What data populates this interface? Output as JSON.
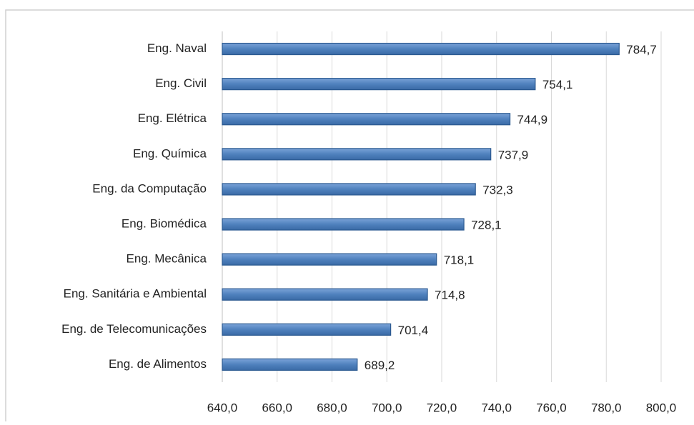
{
  "chart_data": {
    "type": "bar",
    "orientation": "horizontal",
    "categories": [
      "Eng. Naval",
      "Eng. Civil",
      "Eng. Elétrica",
      "Eng. Química",
      "Eng. da Computação",
      "Eng. Biomédica",
      "Eng. Mecânica",
      "Eng. Sanitária e Ambiental",
      "Eng. de Telecomunicações",
      "Eng. de Alimentos"
    ],
    "values": [
      784.7,
      754.1,
      744.9,
      737.9,
      732.3,
      728.1,
      718.1,
      714.8,
      701.4,
      689.2
    ],
    "value_labels": [
      "784,7",
      "754,1",
      "744,9",
      "737,9",
      "732,3",
      "728,1",
      "718,1",
      "714,8",
      "701,4",
      "689,2"
    ],
    "color": "#4f81bd",
    "xlim": [
      640,
      800
    ],
    "xticks": [
      {
        "value": 640,
        "label": "640,0"
      },
      {
        "value": 660,
        "label": "660,0"
      },
      {
        "value": 680,
        "label": "680,0"
      },
      {
        "value": 700,
        "label": "700,0"
      },
      {
        "value": 720,
        "label": "720,0"
      },
      {
        "value": 740,
        "label": "740,0"
      },
      {
        "value": 760,
        "label": "760,0"
      },
      {
        "value": 780,
        "label": "780,0"
      },
      {
        "value": 800,
        "label": "800,0"
      }
    ],
    "grid": true
  }
}
